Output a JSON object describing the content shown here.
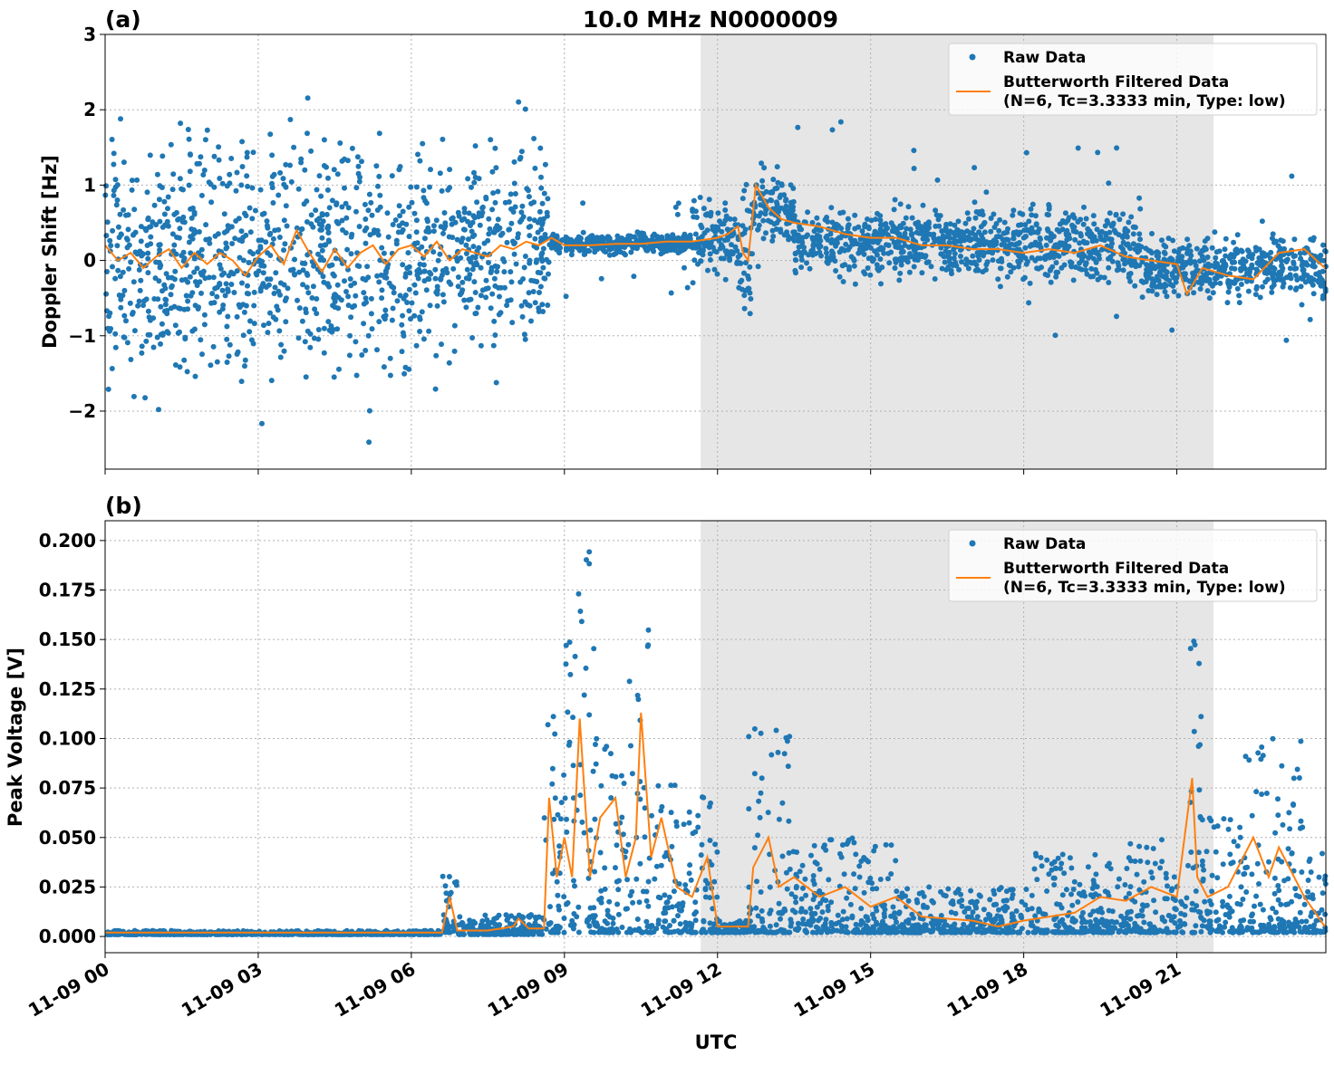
{
  "figure_title": "10.0 MHz N0000009",
  "colors": {
    "raw": "#1f77b4",
    "filtered": "#ff7f0e",
    "shade": "#e6e6e6",
    "grid": "#b0b0b0"
  },
  "x_axis": {
    "label": "UTC",
    "range": [
      "11-09 00:00",
      "11-09 23:55"
    ],
    "ticks": [
      "11-09 00",
      "11-09 03",
      "11-09 06",
      "11-09 09",
      "11-09 12",
      "11-09 15",
      "11-09 18",
      "11-09 21"
    ],
    "tick_hours": [
      0,
      3,
      6,
      9,
      12,
      15,
      18,
      21
    ]
  },
  "shaded_span": {
    "start": "11-09 11:40",
    "end": "11-09 21:43",
    "start_hour": 11.67,
    "end_hour": 21.72
  },
  "legend": {
    "raw": "Raw Data",
    "filtered_line1": "Butterworth Filtered Data",
    "filtered_line2": "(N=6, Tc=3.3333 min, Type: low)",
    "placement": "upper-right"
  },
  "chart_data": [
    {
      "panel_label": "(a)",
      "type": "scatter+line",
      "ylabel": "Doppler Shift [Hz]",
      "ylim": [
        -2.77,
        3.0
      ],
      "yticks": [
        3,
        2,
        1,
        0,
        -1,
        -2
      ],
      "ytick_labels": [
        "3",
        "2",
        "1",
        "0",
        "−1",
        "−2"
      ],
      "grid": true,
      "filtered_series": {
        "name": "Butterworth Filtered Data",
        "hours": [
          0,
          0.25,
          0.5,
          0.75,
          1,
          1.25,
          1.5,
          1.75,
          2,
          2.25,
          2.5,
          2.75,
          3,
          3.25,
          3.5,
          3.75,
          4,
          4.25,
          4.5,
          4.75,
          5,
          5.25,
          5.5,
          5.75,
          6,
          6.25,
          6.5,
          6.75,
          7,
          7.25,
          7.5,
          7.75,
          8,
          8.25,
          8.5,
          8.75,
          9,
          9.5,
          10,
          10.5,
          11,
          11.5,
          12,
          12.2,
          12.4,
          12.5,
          12.6,
          12.75,
          13,
          13.25,
          13.5,
          14,
          14.5,
          15,
          15.5,
          16,
          16.5,
          17,
          17.5,
          18,
          18.5,
          19,
          19.5,
          20,
          20.5,
          21,
          21.2,
          21.5,
          22,
          22.5,
          23,
          23.5,
          23.9
        ],
        "values": [
          0.2,
          0.0,
          0.1,
          -0.1,
          0.05,
          0.15,
          -0.1,
          0.1,
          -0.05,
          0.1,
          0.0,
          -0.2,
          0.05,
          0.2,
          -0.05,
          0.4,
          0.1,
          -0.15,
          0.15,
          -0.1,
          0.1,
          0.2,
          -0.05,
          0.15,
          0.2,
          0.05,
          0.25,
          0.0,
          0.15,
          0.1,
          0.05,
          0.2,
          0.15,
          0.25,
          0.2,
          0.3,
          0.2,
          0.2,
          0.22,
          0.22,
          0.25,
          0.25,
          0.3,
          0.35,
          0.45,
          0.1,
          0.0,
          1.0,
          0.7,
          0.55,
          0.5,
          0.45,
          0.35,
          0.3,
          0.3,
          0.2,
          0.2,
          0.15,
          0.15,
          0.1,
          0.15,
          0.1,
          0.2,
          0.05,
          0.0,
          -0.05,
          -0.45,
          -0.1,
          -0.2,
          -0.25,
          0.1,
          0.15,
          -0.1
        ]
      },
      "raw_envelope": {
        "name": "Raw Data",
        "segments": [
          {
            "start_hour": 0,
            "end_hour": 6.5,
            "low": -1.9,
            "high": 1.9,
            "outlier_low": -2.5,
            "outlier_high": 2.6
          },
          {
            "start_hour": 6.5,
            "end_hour": 8.7,
            "low": -1.5,
            "high": 1.8,
            "outlier_low": -1.8,
            "outlier_high": 2.3
          },
          {
            "start_hour": 8.7,
            "end_hour": 11.5,
            "low": 0.05,
            "high": 0.4,
            "outlier_low": -0.5,
            "outlier_high": 0.85
          },
          {
            "start_hour": 11.5,
            "end_hour": 12.4,
            "low": -0.3,
            "high": 0.9,
            "outlier_low": -0.8,
            "outlier_high": 1.0
          },
          {
            "start_hour": 12.4,
            "end_hour": 12.7,
            "low": -0.9,
            "high": 1.4,
            "outlier_low": -1.05,
            "outlier_high": 1.85
          },
          {
            "start_hour": 12.7,
            "end_hour": 13.5,
            "low": 0.1,
            "high": 1.3,
            "outlier_low": -0.2,
            "outlier_high": 1.6
          },
          {
            "start_hour": 13.5,
            "end_hour": 17,
            "low": -0.3,
            "high": 0.8,
            "outlier_low": -0.9,
            "outlier_high": 2.0
          },
          {
            "start_hour": 17,
            "end_hour": 20.3,
            "low": -0.4,
            "high": 0.8,
            "outlier_low": -1.1,
            "outlier_high": 1.5
          },
          {
            "start_hour": 20.3,
            "end_hour": 22.5,
            "low": -0.6,
            "high": 0.4,
            "outlier_low": -1.2,
            "outlier_high": 0.6
          },
          {
            "start_hour": 22.5,
            "end_hour": 23.92,
            "low": -0.6,
            "high": 0.45,
            "outlier_low": -1.4,
            "outlier_high": 1.5
          }
        ]
      }
    },
    {
      "panel_label": "(b)",
      "type": "scatter+line",
      "ylabel": "Peak Voltage [V]",
      "ylim": [
        -0.0082,
        0.21
      ],
      "yticks": [
        0,
        0.025,
        0.05,
        0.075,
        0.1,
        0.125,
        0.15,
        0.175,
        0.2
      ],
      "ytick_labels": [
        "0.000",
        "0.025",
        "0.050",
        "0.075",
        "0.100",
        "0.125",
        "0.150",
        "0.175",
        "0.200"
      ],
      "grid": true,
      "filtered_series": {
        "name": "Butterworth Filtered Data",
        "hours": [
          0,
          6.6,
          6.75,
          6.9,
          7.5,
          8,
          8.1,
          8.3,
          8.6,
          8.7,
          8.85,
          9,
          9.15,
          9.3,
          9.5,
          9.7,
          10,
          10.2,
          10.4,
          10.5,
          10.7,
          10.9,
          11.2,
          11.5,
          11.8,
          12,
          12.6,
          12.7,
          13,
          13.2,
          13.5,
          14,
          14.5,
          15,
          15.5,
          16,
          17,
          17.5,
          18,
          19,
          19.5,
          20,
          20.5,
          21,
          21.3,
          21.4,
          21.6,
          22,
          22.5,
          22.8,
          23,
          23.5,
          23.9
        ],
        "values": [
          0.002,
          0.002,
          0.02,
          0.003,
          0.003,
          0.005,
          0.009,
          0.004,
          0.004,
          0.07,
          0.03,
          0.05,
          0.03,
          0.11,
          0.03,
          0.06,
          0.07,
          0.03,
          0.05,
          0.113,
          0.04,
          0.06,
          0.025,
          0.02,
          0.04,
          0.005,
          0.005,
          0.035,
          0.05,
          0.025,
          0.03,
          0.02,
          0.025,
          0.015,
          0.02,
          0.01,
          0.008,
          0.005,
          0.008,
          0.012,
          0.02,
          0.018,
          0.025,
          0.02,
          0.08,
          0.03,
          0.02,
          0.025,
          0.05,
          0.03,
          0.045,
          0.02,
          0.005
        ]
      },
      "raw_envelope": {
        "name": "Raw Data",
        "segments": [
          {
            "start_hour": 0,
            "end_hour": 6.6,
            "low": 0.001,
            "high": 0.003
          },
          {
            "start_hour": 6.6,
            "end_hour": 6.9,
            "low": 0.002,
            "high": 0.032
          },
          {
            "start_hour": 6.9,
            "end_hour": 8.6,
            "low": 0.001,
            "high": 0.011
          },
          {
            "start_hour": 8.6,
            "end_hour": 9.0,
            "low": 0.002,
            "high": 0.128
          },
          {
            "start_hour": 9.0,
            "end_hour": 9.6,
            "low": 0.002,
            "high": 0.2
          },
          {
            "start_hour": 9.6,
            "end_hour": 10.2,
            "low": 0.002,
            "high": 0.1
          },
          {
            "start_hour": 10.2,
            "end_hour": 10.7,
            "low": 0.002,
            "high": 0.156
          },
          {
            "start_hour": 10.7,
            "end_hour": 11.5,
            "low": 0.002,
            "high": 0.08
          },
          {
            "start_hour": 11.5,
            "end_hour": 12.0,
            "low": 0.002,
            "high": 0.072
          },
          {
            "start_hour": 12.0,
            "end_hour": 12.6,
            "low": 0.002,
            "high": 0.008
          },
          {
            "start_hour": 12.6,
            "end_hour": 13.5,
            "low": 0.002,
            "high": 0.107
          },
          {
            "start_hour": 13.5,
            "end_hour": 15.5,
            "low": 0.002,
            "high": 0.05
          },
          {
            "start_hour": 15.5,
            "end_hour": 18.0,
            "low": 0.002,
            "high": 0.025
          },
          {
            "start_hour": 18.0,
            "end_hour": 20.0,
            "low": 0.002,
            "high": 0.042
          },
          {
            "start_hour": 20.0,
            "end_hour": 21.2,
            "low": 0.002,
            "high": 0.05
          },
          {
            "start_hour": 21.2,
            "end_hour": 21.5,
            "low": 0.002,
            "high": 0.16
          },
          {
            "start_hour": 21.5,
            "end_hour": 22.3,
            "low": 0.002,
            "high": 0.06
          },
          {
            "start_hour": 22.3,
            "end_hour": 23.5,
            "low": 0.002,
            "high": 0.105
          },
          {
            "start_hour": 23.5,
            "end_hour": 23.92,
            "low": 0.002,
            "high": 0.042
          }
        ]
      }
    }
  ]
}
